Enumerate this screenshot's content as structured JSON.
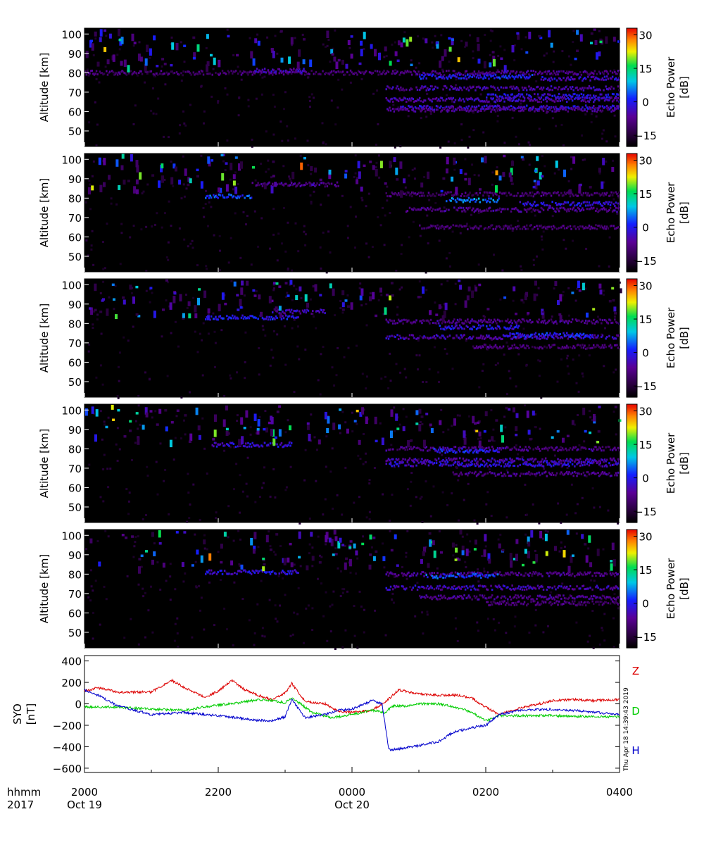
{
  "chart_data": [
    {
      "type": "heatmap",
      "panel": 1,
      "ylabel": "Altitude [km]",
      "yticks": [
        50,
        60,
        70,
        80,
        90,
        100
      ],
      "ylim": [
        42,
        103
      ],
      "xlim_hours": [
        20,
        28
      ],
      "colorbar": {
        "label": "Echo Power [dB]",
        "ticks": [
          -15,
          0,
          15,
          30
        ],
        "range": [
          -20,
          33
        ]
      },
      "echo_layers": [
        {
          "t_start": 20.0,
          "t_end": 24.5,
          "alt": 80,
          "dB": -10
        },
        {
          "t_start": 22.5,
          "t_end": 23.3,
          "alt": 81,
          "dB": -5
        },
        {
          "t_start": 24.5,
          "t_end": 28.0,
          "alt": 80,
          "dB": -8
        },
        {
          "t_start": 25.0,
          "t_end": 26.7,
          "alt": 78,
          "dB": 0
        },
        {
          "t_start": 26.8,
          "t_end": 28.0,
          "alt": 77,
          "dB": -3
        },
        {
          "t_start": 24.5,
          "t_end": 28.0,
          "alt": 72,
          "dB": -6
        },
        {
          "t_start": 26.0,
          "t_end": 28.0,
          "alt": 68,
          "dB": -2
        },
        {
          "t_start": 24.5,
          "t_end": 28.0,
          "alt": 66,
          "dB": -5
        },
        {
          "t_start": 24.7,
          "t_end": 28.0,
          "alt": 62,
          "dB": -3
        },
        {
          "t_start": 24.5,
          "t_end": 28.0,
          "alt": 61,
          "dB": -8
        }
      ]
    },
    {
      "type": "heatmap",
      "panel": 2,
      "ylabel": "Altitude [km]",
      "yticks": [
        50,
        60,
        70,
        80,
        90,
        100
      ],
      "ylim": [
        42,
        103
      ],
      "xlim_hours": [
        20,
        28
      ],
      "colorbar": {
        "label": "Echo Power [dB]",
        "ticks": [
          -15,
          0,
          15,
          30
        ],
        "range": [
          -20,
          33
        ]
      },
      "echo_layers": [
        {
          "t_start": 21.8,
          "t_end": 22.5,
          "alt": 81,
          "dB": 3
        },
        {
          "t_start": 22.5,
          "t_end": 23.8,
          "alt": 87,
          "dB": -8
        },
        {
          "t_start": 24.5,
          "t_end": 28.0,
          "alt": 82,
          "dB": -10
        },
        {
          "t_start": 25.4,
          "t_end": 26.2,
          "alt": 79,
          "dB": 5
        },
        {
          "t_start": 26.5,
          "t_end": 28.0,
          "alt": 77,
          "dB": -2
        },
        {
          "t_start": 24.8,
          "t_end": 28.0,
          "alt": 74,
          "dB": -8
        },
        {
          "t_start": 25.0,
          "t_end": 28.0,
          "alt": 65,
          "dB": -10
        }
      ]
    },
    {
      "type": "heatmap",
      "panel": 3,
      "ylabel": "Altitude [km]",
      "yticks": [
        50,
        60,
        70,
        80,
        90,
        100
      ],
      "ylim": [
        42,
        103
      ],
      "xlim_hours": [
        20,
        28
      ],
      "colorbar": {
        "label": "Echo Power [dB]",
        "ticks": [
          -15,
          0,
          15,
          30
        ],
        "range": [
          -20,
          33
        ]
      },
      "echo_layers": [
        {
          "t_start": 21.8,
          "t_end": 23.2,
          "alt": 83,
          "dB": 0
        },
        {
          "t_start": 22.8,
          "t_end": 23.6,
          "alt": 86,
          "dB": -5
        },
        {
          "t_start": 24.5,
          "t_end": 28.0,
          "alt": 81,
          "dB": -8
        },
        {
          "t_start": 25.3,
          "t_end": 26.5,
          "alt": 78,
          "dB": -2
        },
        {
          "t_start": 24.5,
          "t_end": 28.0,
          "alt": 73,
          "dB": -5
        },
        {
          "t_start": 26.3,
          "t_end": 27.6,
          "alt": 74,
          "dB": 0
        },
        {
          "t_start": 25.8,
          "t_end": 28.0,
          "alt": 68,
          "dB": -10
        }
      ]
    },
    {
      "type": "heatmap",
      "panel": 4,
      "ylabel": "Altitude [km]",
      "yticks": [
        50,
        60,
        70,
        80,
        90,
        100
      ],
      "ylim": [
        42,
        103
      ],
      "xlim_hours": [
        20,
        28
      ],
      "colorbar": {
        "label": "Echo Power [dB]",
        "ticks": [
          -15,
          0,
          15,
          30
        ],
        "range": [
          -20,
          33
        ]
      },
      "echo_layers": [
        {
          "t_start": 21.9,
          "t_end": 23.1,
          "alt": 82,
          "dB": -3
        },
        {
          "t_start": 24.5,
          "t_end": 28.0,
          "alt": 80,
          "dB": -8
        },
        {
          "t_start": 25.2,
          "t_end": 26.2,
          "alt": 79,
          "dB": 0
        },
        {
          "t_start": 24.5,
          "t_end": 28.0,
          "alt": 74,
          "dB": -5
        },
        {
          "t_start": 24.5,
          "t_end": 28.0,
          "alt": 72,
          "dB": -3
        },
        {
          "t_start": 25.5,
          "t_end": 28.0,
          "alt": 67,
          "dB": -8
        }
      ]
    },
    {
      "type": "heatmap",
      "panel": 5,
      "ylabel": "Altitude [km]",
      "yticks": [
        50,
        60,
        70,
        80,
        90,
        100
      ],
      "ylim": [
        42,
        103
      ],
      "xlim_hours": [
        20,
        28
      ],
      "colorbar": {
        "label": "Echo Power [dB]",
        "ticks": [
          -15,
          0,
          15,
          30
        ],
        "range": [
          -20,
          33
        ]
      },
      "echo_layers": [
        {
          "t_start": 21.8,
          "t_end": 23.2,
          "alt": 81,
          "dB": -2
        },
        {
          "t_start": 24.5,
          "t_end": 28.0,
          "alt": 80,
          "dB": -8
        },
        {
          "t_start": 25.1,
          "t_end": 26.2,
          "alt": 79,
          "dB": 3
        },
        {
          "t_start": 24.5,
          "t_end": 28.0,
          "alt": 73,
          "dB": -5
        },
        {
          "t_start": 25.0,
          "t_end": 28.0,
          "alt": 68,
          "dB": -8
        },
        {
          "t_start": 26.0,
          "t_end": 28.0,
          "alt": 65,
          "dB": -10
        }
      ]
    },
    {
      "type": "line",
      "panel": 6,
      "ylabel": "SYO [nT]",
      "yticks": [
        -600,
        -400,
        -200,
        0,
        200,
        400
      ],
      "ylim": [
        -640,
        450
      ],
      "xlim_hours": [
        20,
        28
      ],
      "stamp": "Thu Apr 18 14:39:43 2019",
      "series": [
        {
          "name": "Z",
          "color": "#dd0000",
          "x": [
            20.0,
            20.2,
            20.5,
            21.0,
            21.3,
            21.5,
            21.8,
            22.0,
            22.2,
            22.4,
            22.6,
            22.8,
            23.0,
            23.1,
            23.3,
            23.6,
            23.8,
            24.0,
            24.3,
            24.5,
            24.7,
            25.0,
            25.3,
            25.6,
            25.8,
            26.0,
            26.2,
            26.5,
            26.8,
            27.0,
            27.3,
            27.6,
            28.0
          ],
          "y": [
            120,
            150,
            110,
            110,
            220,
            150,
            60,
            120,
            220,
            130,
            80,
            40,
            100,
            190,
            20,
            0,
            -70,
            -80,
            -60,
            20,
            130,
            90,
            80,
            80,
            50,
            -30,
            -100,
            -40,
            0,
            30,
            40,
            30,
            40
          ]
        },
        {
          "name": "D",
          "color": "#00cc00",
          "x": [
            20.0,
            20.5,
            21.0,
            21.5,
            21.8,
            22.0,
            22.3,
            22.5,
            22.7,
            23.0,
            23.1,
            23.4,
            23.7,
            24.0,
            24.3,
            24.5,
            24.6,
            24.8,
            25.0,
            25.3,
            25.6,
            25.8,
            26.0,
            26.2,
            26.5,
            27.0,
            27.5,
            28.0
          ],
          "y": [
            -30,
            -30,
            -50,
            -60,
            -30,
            -10,
            10,
            30,
            40,
            10,
            60,
            -80,
            -130,
            -100,
            -60,
            -80,
            -20,
            -20,
            0,
            0,
            -40,
            -80,
            -160,
            -110,
            -110,
            -110,
            -120,
            -120
          ]
        },
        {
          "name": "H",
          "color": "#0000cc",
          "x": [
            20.0,
            20.2,
            20.5,
            21.0,
            21.5,
            21.8,
            22.0,
            22.3,
            22.5,
            22.8,
            23.0,
            23.1,
            23.3,
            23.6,
            23.8,
            24.0,
            24.3,
            24.45,
            24.55,
            24.7,
            25.0,
            25.3,
            25.5,
            25.8,
            26.0,
            26.2,
            26.5,
            27.0,
            27.5,
            28.0
          ],
          "y": [
            130,
            80,
            -20,
            -100,
            -80,
            -100,
            -110,
            -130,
            -150,
            -160,
            -120,
            40,
            -130,
            -100,
            -60,
            -50,
            30,
            0,
            -430,
            -420,
            -390,
            -350,
            -270,
            -220,
            -200,
            -100,
            -60,
            -50,
            -70,
            -100
          ]
        }
      ]
    }
  ],
  "xaxis": {
    "hhmm_label": "hhmm",
    "year_label": "2017",
    "ticks": [
      {
        "hour": 20,
        "label": "2000",
        "date": "Oct 19"
      },
      {
        "hour": 22,
        "label": "2200",
        "date": ""
      },
      {
        "hour": 24,
        "label": "0000",
        "date": "Oct 20"
      },
      {
        "hour": 26,
        "label": "0200",
        "date": ""
      },
      {
        "hour": 28,
        "label": "0400",
        "date": ""
      }
    ]
  }
}
